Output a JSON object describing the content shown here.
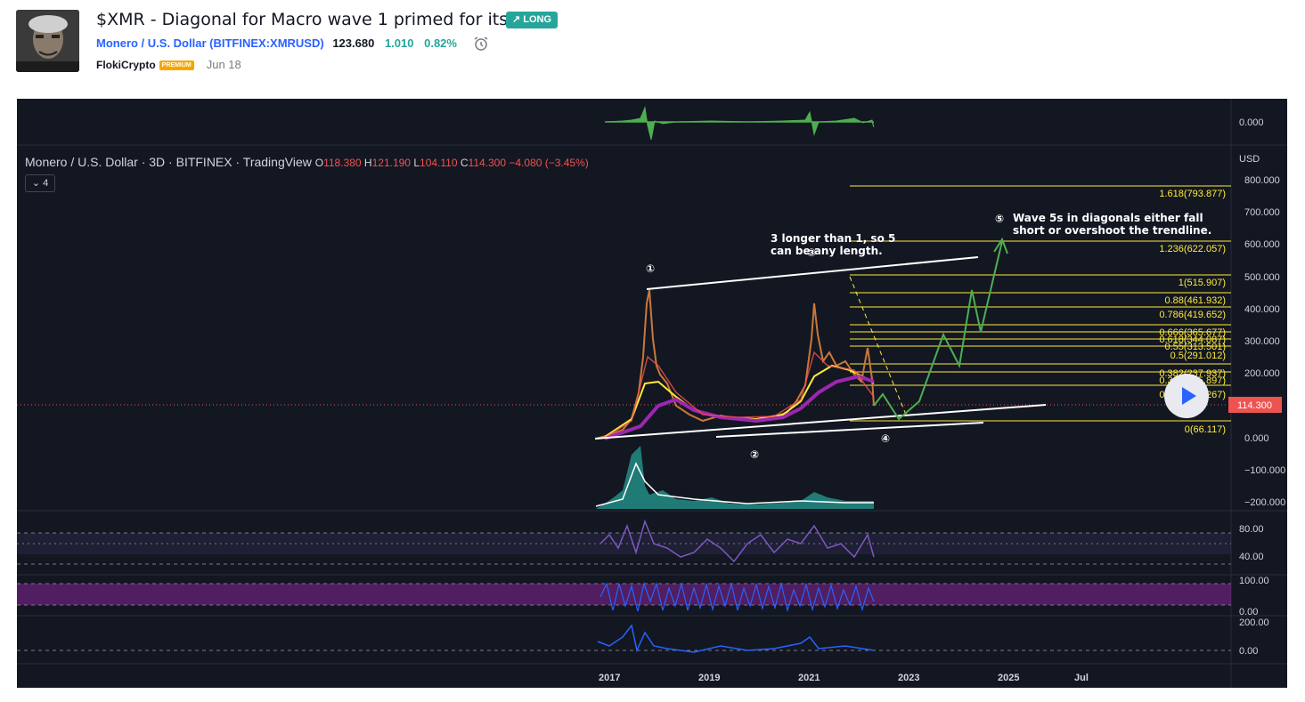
{
  "header": {
    "title": "$XMR - Diagonal for Macro wave 1 primed for its 5",
    "badge": "↗ LONG",
    "symbol_name": "Monero / U.S. Dollar",
    "symbol_ticker": "(BITFINEX:XMRUSD)",
    "price": "123.680",
    "change": "1.010",
    "change_pct": "0.82%",
    "author": "FlokiCrypto",
    "author_badge": "PREMIUM",
    "date": "Jun 18"
  },
  "chart": {
    "legend_name": "Monero / U.S. Dollar · 3D · BITFINEX · TradingView",
    "open_label": "O",
    "open": "118.380",
    "high_label": "H",
    "high": "121.190",
    "low_label": "L",
    "low": "104.110",
    "close_label": "C",
    "close": "114.300",
    "change": "−4.080 (−3.45%)",
    "collapse_count": "4",
    "currency": "USD",
    "last_price": "114.300",
    "top_pane_value": "0.000",
    "price_axis": [
      "800.000",
      "700.000",
      "600.000",
      "500.000",
      "400.000",
      "300.000",
      "200.000",
      "100.000",
      "0.000",
      "−100.000",
      "−200.000"
    ],
    "rsi_axis": [
      "80.00",
      "40.00"
    ],
    "stoch_axis": [
      "100.00",
      "0.00"
    ],
    "bottom_axis": [
      "200.00",
      "0.00"
    ],
    "time_axis": [
      "2017",
      "2019",
      "2021",
      "2023",
      "2025",
      "Jul"
    ],
    "fib_levels": [
      "1.618(793.877)",
      "1.236(622.057)",
      "1(515.907)",
      "0.88(461.932)",
      "0.786(419.652)",
      "0.666(365.677)",
      "0.618(344.087)",
      "0.55(313.501)",
      "0.5(291.012)",
      "0.382(237.937)",
      "0.333(215.897)",
      "0.236(172.267)",
      "0(66.117)"
    ],
    "annotations": {
      "wave1": "①",
      "wave2": "②",
      "wave3": "③",
      "wave4": "④",
      "wave5": "⑤",
      "note_3_line1": "3 longer than 1, so 5",
      "note_3_line2": "can be any length.",
      "note_5_line1": "Wave 5s in diagonals either fall",
      "note_5_line2": "short or overshoot the trendline."
    }
  },
  "colors": {
    "chart_bg": "#131722",
    "fib": "#ffeb3b",
    "projection": "#4caf50",
    "last_price": "#ef5350",
    "link": "#2962ff",
    "long_badge": "#26a69a"
  }
}
